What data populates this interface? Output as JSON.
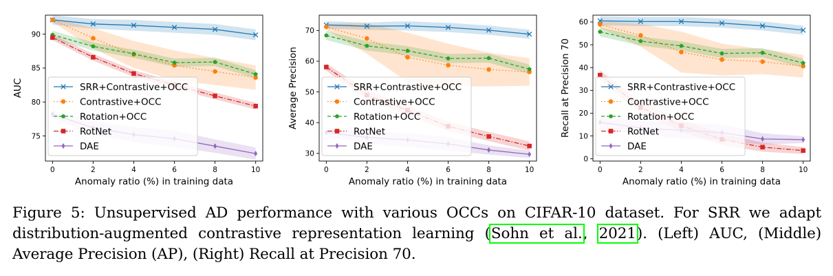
{
  "figure": {
    "caption": {
      "prefix": "Figure 5: Unsupervised AD performance with various OCCs on CIFAR-10 dataset. For SRR we adapt distribution-augmented contrastive representation learning (",
      "cite_author": "Sohn et al.",
      "cite_sep": ", ",
      "cite_year": "2021",
      "suffix": "). (Left) AUC, (Middle) Average Precision (AP), (Right) Recall at Precision 70."
    }
  },
  "colors": {
    "SRR+Contrastive+OCC": "#1f77b4",
    "Contrastive+OCC": "#ff7f0e",
    "Rotation+OCC": "#2ca02c",
    "RotNet": "#d62728",
    "DAE": "#9467bd"
  },
  "chart_data": [
    {
      "type": "line",
      "title": "",
      "xlabel": "Anomaly ratio (%) in training data",
      "ylabel": "AUC",
      "x": [
        0,
        2,
        4,
        6,
        8,
        10
      ],
      "xlim": [
        -0.35,
        10.35
      ],
      "ylim": [
        71.3,
        92.8
      ],
      "yticks": [
        75,
        80,
        85,
        90
      ],
      "legend": "center-left",
      "series": [
        {
          "name": "SRR+Contrastive+OCC",
          "marker": "x",
          "linestyle": "solid",
          "values": [
            92.1,
            91.5,
            91.3,
            91.0,
            90.7,
            89.9
          ],
          "band": [
            0.7,
            0.7,
            0.8,
            0.8,
            0.8,
            0.8
          ]
        },
        {
          "name": "Contrastive+OCC",
          "marker": "circle",
          "linestyle": "dotted",
          "values": [
            92.1,
            89.4,
            87.0,
            85.4,
            84.5,
            83.6
          ],
          "band": [
            0.3,
            1.5,
            2.0,
            2.2,
            2.0,
            1.8
          ]
        },
        {
          "name": "Rotation+OCC",
          "marker": "pentagon",
          "linestyle": "dashed",
          "values": [
            89.9,
            88.2,
            87.1,
            85.8,
            85.9,
            84.1
          ],
          "band": [
            0.6,
            0.6,
            0.6,
            0.6,
            0.6,
            0.6
          ]
        },
        {
          "name": "RotNet",
          "marker": "square",
          "linestyle": "dashdot",
          "values": [
            89.5,
            86.6,
            84.2,
            82.5,
            80.9,
            79.4
          ],
          "band": [
            0.4,
            0.5,
            0.5,
            0.5,
            0.5,
            0.5
          ]
        },
        {
          "name": "DAE",
          "marker": "diamond",
          "linestyle": "solid",
          "values": [
            78.2,
            76.2,
            75.2,
            74.6,
            73.5,
            72.4
          ],
          "band": [
            0.6,
            1.0,
            1.1,
            1.2,
            1.0,
            0.9
          ]
        }
      ]
    },
    {
      "type": "line",
      "title": "",
      "xlabel": "Anomaly ratio (%) in training data",
      "ylabel": "Average Precision",
      "x": [
        0,
        2,
        4,
        6,
        8,
        10
      ],
      "xlim": [
        -0.35,
        10.35
      ],
      "ylim": [
        27.5,
        75
      ],
      "yticks": [
        30,
        40,
        50,
        60,
        70
      ],
      "legend": "center-left",
      "series": [
        {
          "name": "SRR+Contrastive+OCC",
          "marker": "x",
          "linestyle": "solid",
          "values": [
            71.8,
            71.4,
            71.5,
            71.0,
            70.1,
            68.8
          ],
          "band": [
            1.2,
            1.2,
            1.5,
            1.5,
            1.5,
            1.5
          ]
        },
        {
          "name": "Contrastive+OCC",
          "marker": "circle",
          "linestyle": "dotted",
          "values": [
            71.2,
            67.4,
            61.3,
            58.7,
            57.3,
            56.5
          ],
          "band": [
            1.0,
            5.0,
            8.0,
            7.0,
            5.5,
            4.5
          ]
        },
        {
          "name": "Rotation+OCC",
          "marker": "pentagon",
          "linestyle": "dashed",
          "values": [
            68.4,
            65.0,
            63.4,
            60.9,
            61.0,
            57.4
          ],
          "band": [
            1.5,
            1.5,
            1.5,
            1.5,
            1.5,
            1.5
          ]
        },
        {
          "name": "RotNet",
          "marker": "square",
          "linestyle": "dashdot",
          "values": [
            58.1,
            49.0,
            44.0,
            38.8,
            35.5,
            32.4
          ],
          "band": [
            1.2,
            1.5,
            1.5,
            1.5,
            1.5,
            1.5
          ]
        },
        {
          "name": "DAE",
          "marker": "diamond",
          "linestyle": "solid",
          "values": [
            36.8,
            35.2,
            34.4,
            33.1,
            31.1,
            29.7
          ],
          "band": [
            1.5,
            2.0,
            2.2,
            2.2,
            1.5,
            1.2
          ]
        }
      ]
    },
    {
      "type": "line",
      "title": "",
      "xlabel": "Anomaly ratio (%) in training data",
      "ylabel": "Recall at Precision 70",
      "x": [
        0,
        2,
        4,
        6,
        8,
        10
      ],
      "xlim": [
        -0.35,
        10.35
      ],
      "ylim": [
        -1,
        63
      ],
      "yticks": [
        0,
        10,
        20,
        30,
        40,
        50,
        60
      ],
      "legend": "center-left",
      "series": [
        {
          "name": "SRR+Contrastive+OCC",
          "marker": "x",
          "linestyle": "solid",
          "values": [
            60.5,
            60.2,
            60.2,
            59.5,
            58.3,
            56.4
          ],
          "band": [
            2.0,
            2.0,
            2.0,
            2.0,
            2.0,
            2.0
          ]
        },
        {
          "name": "Contrastive+OCC",
          "marker": "circle",
          "linestyle": "dotted",
          "values": [
            58.9,
            54.1,
            46.8,
            43.5,
            42.6,
            40.6
          ],
          "band": [
            1.5,
            5.0,
            9.0,
            7.0,
            5.5,
            5.0
          ]
        },
        {
          "name": "Rotation+OCC",
          "marker": "pentagon",
          "linestyle": "dashed",
          "values": [
            55.7,
            51.6,
            49.5,
            46.2,
            46.5,
            42.0
          ],
          "band": [
            2.0,
            2.0,
            2.0,
            2.0,
            2.0,
            2.0
          ]
        },
        {
          "name": "RotNet",
          "marker": "square",
          "linestyle": "dashdot",
          "values": [
            36.7,
            22.5,
            14.5,
            8.5,
            5.1,
            3.6
          ],
          "band": [
            2.0,
            2.5,
            2.5,
            2.5,
            2.0,
            1.5
          ]
        },
        {
          "name": "DAE",
          "marker": "diamond",
          "linestyle": "solid",
          "values": [
            16.0,
            13.5,
            12.5,
            11.5,
            8.7,
            8.4
          ],
          "band": [
            2.5,
            3.0,
            3.5,
            3.5,
            2.5,
            1.5
          ]
        }
      ]
    }
  ]
}
